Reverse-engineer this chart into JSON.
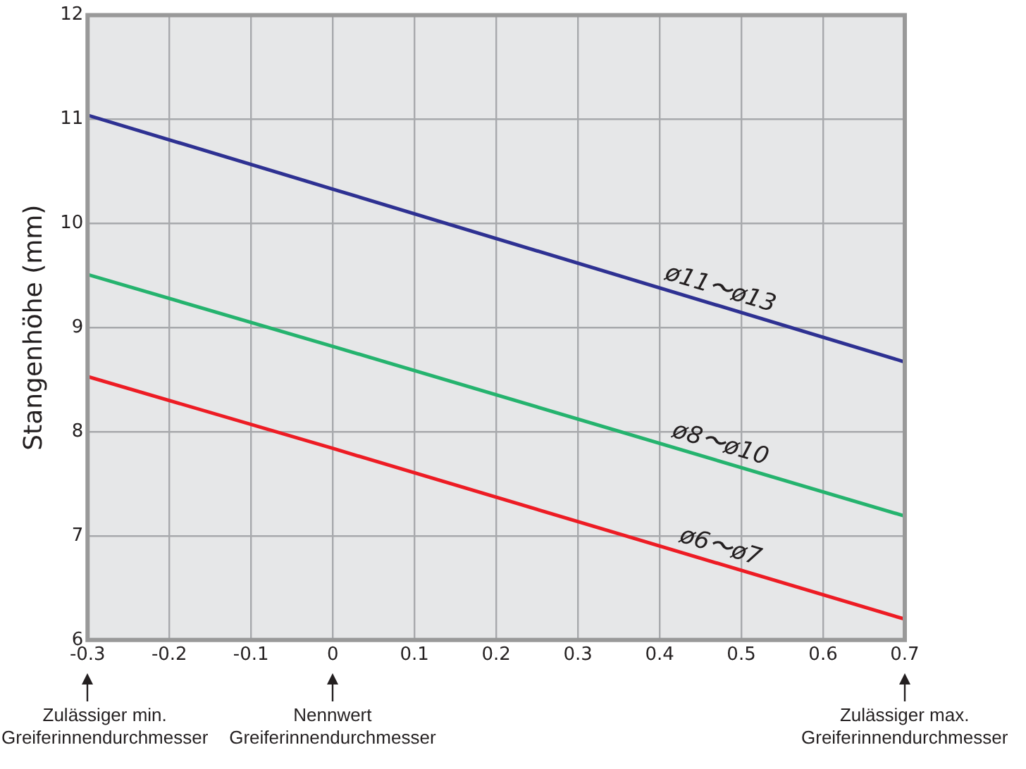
{
  "chart_data": {
    "type": "line",
    "ylabel": "Stangenhöhe (mm)",
    "xlim": [
      -0.3,
      0.7
    ],
    "xticks": [
      -0.3,
      -0.2,
      -0.1,
      0,
      0.1,
      0.2,
      0.3,
      0.4,
      0.5,
      0.6,
      0.7
    ],
    "ylim": [
      6,
      12
    ],
    "yticks": [
      6,
      7,
      8,
      9,
      10,
      11,
      12
    ],
    "grid": true,
    "legend": false,
    "marker": "none",
    "line_style": "solid",
    "series": [
      {
        "name": "ø11〜ø13",
        "color": "#2e3192",
        "x": [
          -0.3,
          0,
          0.7
        ],
        "values": [
          11.04,
          10.33,
          8.67
        ]
      },
      {
        "name": "ø8〜ø10",
        "color": "#25b36e",
        "x": [
          -0.3,
          0,
          0.7
        ],
        "values": [
          9.51,
          8.82,
          7.19
        ]
      },
      {
        "name": "ø6〜ø7",
        "color": "#ed1c24",
        "x": [
          -0.3,
          0,
          0.7
        ],
        "values": [
          8.53,
          7.84,
          6.2
        ]
      }
    ],
    "annotations": [
      "Zulässiger min.\nGreiferinnendurchmesser",
      "Nennwert\nGreiferinnendurchmesser",
      "Zulässiger max.\nGreiferinnendurchmesser"
    ]
  }
}
